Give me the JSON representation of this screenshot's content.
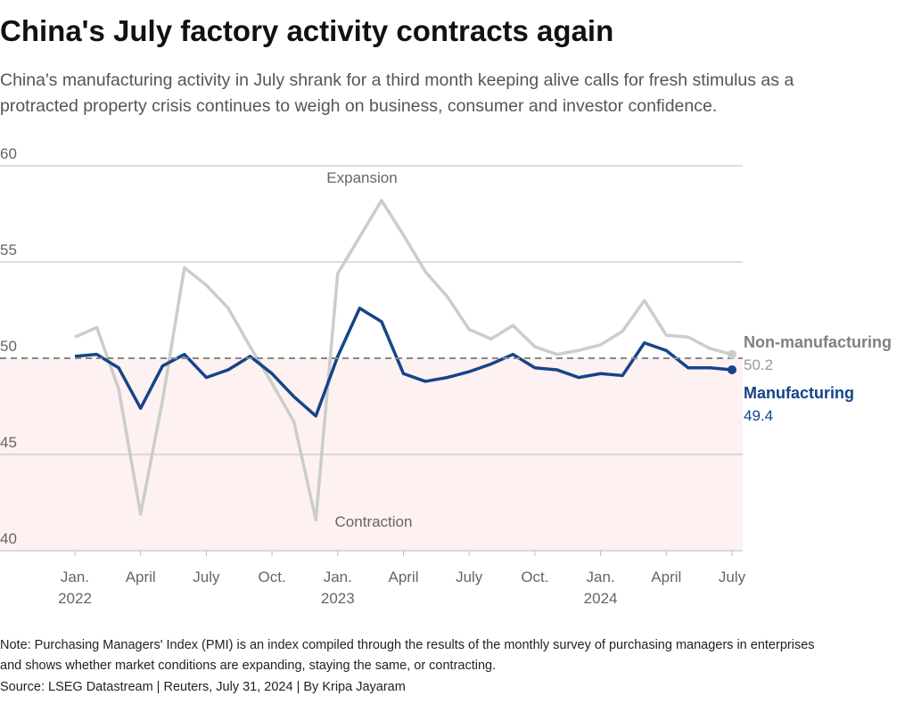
{
  "chart_data": {
    "type": "line",
    "title": "China's July factory activity contracts again",
    "subtitle": [
      "China's manufacturing activity in July shrank for a third month keeping alive calls for fresh stimulus as a",
      "protracted property crisis continues to weigh on business, consumer and investor confidence."
    ],
    "categories": [
      "Jan.\n2022",
      null,
      null,
      "April",
      null,
      null,
      "July",
      null,
      null,
      "Oct.",
      null,
      null,
      "Jan.\n2023",
      null,
      null,
      "April",
      null,
      null,
      "July",
      null,
      null,
      "Oct.",
      null,
      null,
      "Jan.\n2024",
      null,
      null,
      "April",
      null,
      null,
      "July"
    ],
    "series": [
      {
        "name": "Non-manufacturing",
        "color": "#cccccc",
        "label_color": "#808080",
        "values": [
          51.1,
          51.6,
          48.4,
          41.9,
          47.8,
          54.7,
          53.8,
          52.6,
          50.6,
          48.7,
          46.7,
          41.6,
          54.4,
          56.3,
          58.2,
          56.4,
          54.5,
          53.2,
          51.5,
          51.0,
          51.7,
          50.6,
          50.2,
          50.4,
          50.7,
          51.4,
          53.0,
          51.2,
          51.1,
          50.5,
          50.2
        ]
      },
      {
        "name": "Manufacturing",
        "color": "#15448a",
        "label_color": "#15448a",
        "values": [
          50.1,
          50.2,
          49.5,
          47.4,
          49.6,
          50.2,
          49.0,
          49.4,
          50.1,
          49.2,
          48.0,
          47.0,
          50.1,
          52.6,
          51.9,
          49.2,
          48.8,
          49.0,
          49.3,
          49.7,
          50.2,
          49.5,
          49.4,
          49.0,
          49.2,
          49.1,
          50.8,
          50.4,
          49.5,
          49.5,
          49.4
        ]
      }
    ],
    "ylim": [
      40,
      60
    ],
    "yticks": [
      40,
      45,
      50,
      55,
      60
    ],
    "grid": true,
    "reference_line": 50,
    "annotations": [
      "Expansion",
      "Contraction"
    ],
    "note": [
      "Note: Purchasing Managers' Index (PMI) is an index compiled through the results of the monthly survey of purchasing managers in enterprises",
      "and shows whether market conditions are expanding, staying the same, or contracting."
    ],
    "source": "Source: LSEG Datastream | Reuters, July 31, 2024 | By Kripa Jayaram"
  }
}
